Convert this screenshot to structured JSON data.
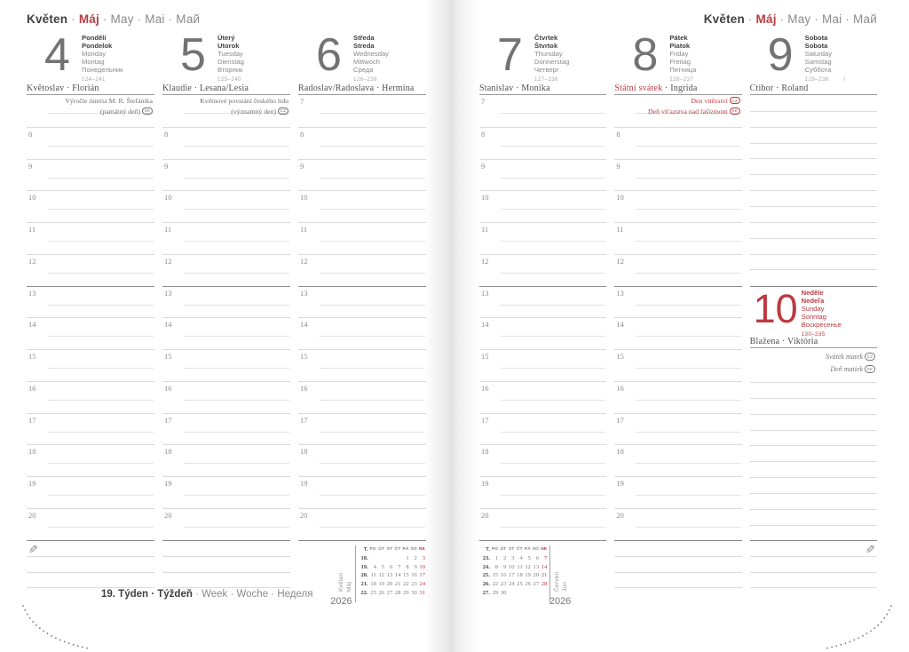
{
  "colors": {
    "accent_red": "#bb3a40",
    "text_dark": "#3f3f3f",
    "text_gray": "#8a8a8a",
    "line_light": "#dcdcdc",
    "line_dark": "#8d8d8d"
  },
  "month_header": {
    "separator": "·",
    "parts": [
      {
        "text": "Květen",
        "style": "bold-dark"
      },
      {
        "text": "Máj",
        "style": "bold-red"
      },
      {
        "text": "May",
        "style": "gray"
      },
      {
        "text": "Mai",
        "style": "gray"
      },
      {
        "text": "Май",
        "style": "gray"
      }
    ]
  },
  "hours": [
    "7",
    "8",
    "9",
    "10",
    "11",
    "12",
    "13",
    "14",
    "15",
    "16",
    "17",
    "18",
    "19",
    "20"
  ],
  "strong_hour": "13",
  "week_footer": {
    "bold": "19. Týden · Týždeň",
    "rest": " · Week · Woche · Неделя"
  },
  "days": {
    "monday": {
      "number": "4",
      "red": false,
      "hide_first_hour": true,
      "names": [
        "Pondělí",
        "Pondelok",
        "Monday",
        "Montag",
        "Понедельник"
      ],
      "journal": "124–241",
      "moon": "",
      "nameday": [
        {
          "text": "Květoslav · Florián"
        }
      ],
      "notes": {
        "style": "plain",
        "lines": [
          {
            "text": "Výročie úmrtia M. R. Štefánika",
            "badge": ""
          },
          {
            "text": "(pamätný deň)",
            "badge": "SK"
          }
        ]
      }
    },
    "tuesday": {
      "number": "5",
      "red": false,
      "hide_first_hour": true,
      "names": [
        "Úterý",
        "Utorok",
        "Tuesday",
        "Dienstag",
        "Вторник"
      ],
      "journal": "125–240",
      "moon": "",
      "nameday": [
        {
          "text": "Klaudie · Lesana/Lesia"
        }
      ],
      "notes": {
        "style": "plain",
        "lines": [
          {
            "text": "Květnové povstání českého lidu",
            "badge": ""
          },
          {
            "text": "(významný den)",
            "badge": "CZ"
          }
        ]
      }
    },
    "wednesday": {
      "number": "6",
      "red": false,
      "hide_first_hour": false,
      "names": [
        "Středa",
        "Streda",
        "Wednesday",
        "Mittwoch",
        "Среда"
      ],
      "journal": "126–239",
      "moon": "",
      "nameday": [
        {
          "text": "Radoslav/Radoslava · Hermína"
        }
      ]
    },
    "thursday": {
      "number": "7",
      "red": false,
      "hide_first_hour": false,
      "names": [
        "Čtvrtek",
        "Štvrtok",
        "Thursday",
        "Donnerstag",
        "Четверг"
      ],
      "journal": "127–238",
      "moon": "",
      "nameday": [
        {
          "text": "Stanislav · Monika"
        }
      ]
    },
    "friday": {
      "number": "8",
      "red": false,
      "hide_first_hour": true,
      "names": [
        "Pátek",
        "Piatok",
        "Friday",
        "Freitag",
        "Пятница"
      ],
      "journal": "128–237",
      "moon": "",
      "nameday": [
        {
          "text": "Státní svátek",
          "red": true
        },
        {
          "text": " · Ingrida"
        }
      ],
      "notes": {
        "style": "red",
        "lines": [
          {
            "text": "Den vítězství",
            "badge": "CZ"
          },
          {
            "text": "Deň víťazstva nad fašizmom",
            "badge": "SK"
          }
        ]
      }
    },
    "saturday": {
      "number": "9",
      "red": false,
      "names": [
        "Sobota",
        "Sobota",
        "Saturday",
        "Samstag",
        "Суббота"
      ],
      "journal": "129–236",
      "moon": "☾",
      "nameday": [
        {
          "text": "Ctibor · Roland"
        }
      ]
    },
    "sunday": {
      "number": "10",
      "red": true,
      "names": [
        "Neděle",
        "Nedeľa",
        "Sunday",
        "Sonntag",
        "Воскресенье"
      ],
      "journal": "130–235",
      "moon": "",
      "nameday": [
        {
          "text": "Blažena · Viktória"
        }
      ],
      "notes": {
        "style": "italic",
        "lines": [
          {
            "text": "Svátek matek",
            "badge": "CZ"
          },
          {
            "text": "Deň matiek",
            "badge": "SK"
          }
        ]
      }
    }
  },
  "pages": {
    "left": {
      "columns": [
        {
          "day": "monday",
          "type": "hours",
          "bottom": {
            "lines": 3,
            "pencil": "left"
          }
        },
        {
          "day": "tuesday",
          "type": "hours",
          "bottom": {
            "lines": 3
          }
        },
        {
          "day": "wednesday",
          "type": "hours",
          "bottom": {
            "lines": 0
          }
        }
      ]
    },
    "right": {
      "columns": [
        {
          "day": "thursday",
          "type": "hours",
          "bottom": {
            "lines": 0
          }
        },
        {
          "day": "friday",
          "type": "hours",
          "bottom": {
            "lines": 3
          }
        },
        {
          "day": "saturday",
          "type": "split",
          "second_day": "sunday",
          "bottom": {
            "lines": 3,
            "pencil": "right"
          }
        }
      ]
    }
  },
  "mini_calendars": [
    {
      "side": "left",
      "months": [
        "Květen",
        "Máj"
      ],
      "year": "2026",
      "week_col_header": "T.",
      "day_headers": [
        "PO",
        "ÚT",
        "ST",
        "ČT",
        "PÁ",
        "SO",
        "NE"
      ],
      "weeks": [
        {
          "num": "18.",
          "days": [
            "",
            "",
            "",
            "",
            "1",
            "2",
            "3"
          ]
        },
        {
          "num": "19.",
          "days": [
            "4",
            "5",
            "6",
            "7",
            "8",
            "9",
            "10"
          ]
        },
        {
          "num": "20.",
          "days": [
            "11",
            "12",
            "13",
            "14",
            "15",
            "16",
            "17"
          ]
        },
        {
          "num": "21.",
          "days": [
            "18",
            "19",
            "20",
            "21",
            "22",
            "23",
            "24"
          ]
        },
        {
          "num": "22.",
          "days": [
            "25",
            "26",
            "27",
            "28",
            "29",
            "30",
            "31"
          ]
        }
      ]
    },
    {
      "side": "right",
      "months": [
        "Červen",
        "Jún"
      ],
      "year": "2026",
      "week_col_header": "T.",
      "day_headers": [
        "PO",
        "ÚT",
        "ST",
        "ČT",
        "PÁ",
        "SO",
        "NE"
      ],
      "weeks": [
        {
          "num": "23.",
          "days": [
            "1",
            "2",
            "3",
            "4",
            "5",
            "6",
            "7"
          ]
        },
        {
          "num": "24.",
          "days": [
            "8",
            "9",
            "10",
            "11",
            "12",
            "13",
            "14"
          ]
        },
        {
          "num": "25.",
          "days": [
            "15",
            "16",
            "17",
            "18",
            "19",
            "20",
            "21"
          ]
        },
        {
          "num": "26.",
          "days": [
            "22",
            "23",
            "24",
            "25",
            "26",
            "27",
            "28"
          ]
        },
        {
          "num": "27.",
          "days": [
            "29",
            "30",
            "",
            "",
            "",
            "",
            ""
          ]
        }
      ]
    }
  ]
}
